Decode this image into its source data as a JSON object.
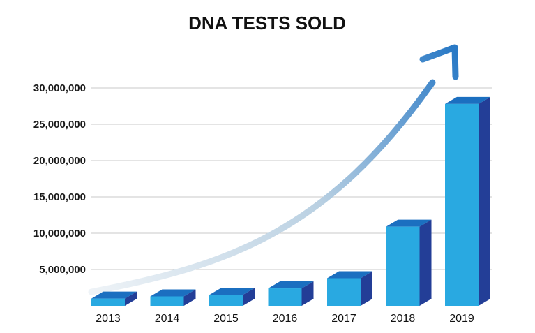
{
  "chart_data": {
    "type": "bar",
    "title": "DNA TESTS SOLD",
    "categories": [
      "2013",
      "2014",
      "2015",
      "2016",
      "2017",
      "2018",
      "2019"
    ],
    "values": [
      1000000,
      1300000,
      1500000,
      2400000,
      3800000,
      10900000,
      27800000
    ],
    "ylim": [
      0,
      30000000
    ],
    "yticks": [
      5000000,
      10000000,
      15000000,
      20000000,
      25000000,
      30000000
    ],
    "ytick_labels": [
      "5,000,000",
      "10,000,000",
      "15,000,000",
      "20,000,000",
      "25,000,000",
      "30,000,000"
    ],
    "grid": true,
    "colors": {
      "bar_front": "#29a9e1",
      "bar_top": "#1b6fc0",
      "bar_side": "#233e97",
      "arrow_start": "#eef3f7",
      "arrow_end": "#2a7ac6"
    }
  }
}
